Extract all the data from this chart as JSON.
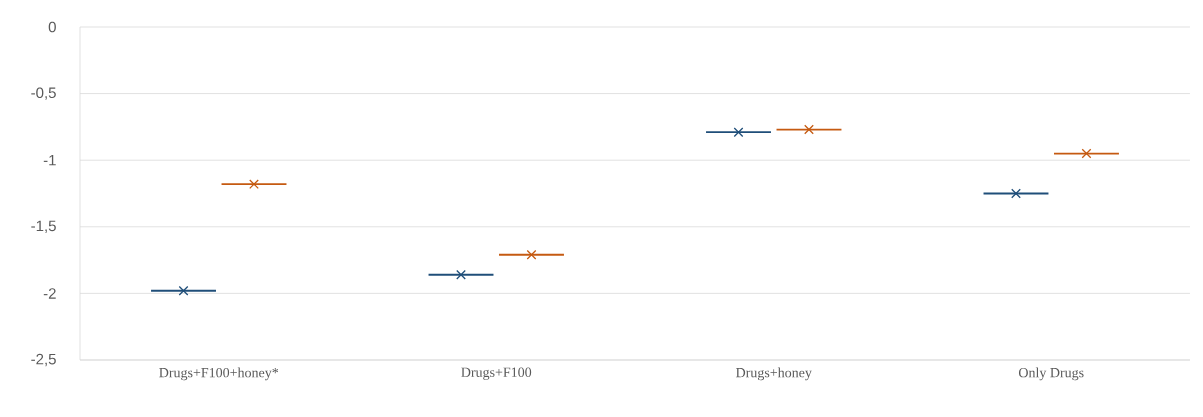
{
  "chart_data": {
    "type": "box",
    "categories": [
      "Drugs+F100+honey*",
      "Drugs+F100",
      "Drugs+honey",
      "Only Drugs"
    ],
    "series": [
      {
        "color": "#1f4e79",
        "boxes": [
          {
            "low": -1.98,
            "q1": -1.98,
            "median": -1.98,
            "q3": -1.98,
            "high": -1.98,
            "mean": -1.98
          },
          {
            "low": -1.86,
            "q1": -1.86,
            "median": -1.86,
            "q3": -1.86,
            "high": -1.86,
            "mean": -1.86
          },
          {
            "low": -0.79,
            "q1": -0.79,
            "median": -0.79,
            "q3": -0.79,
            "high": -0.79,
            "mean": -0.79
          },
          {
            "low": -1.25,
            "q1": -1.25,
            "median": -1.25,
            "q3": -1.25,
            "high": -1.25,
            "mean": -1.25
          }
        ]
      },
      {
        "color": "#c55a11",
        "boxes": [
          {
            "low": -1.18,
            "q1": -1.18,
            "median": -1.18,
            "q3": -1.18,
            "high": -1.18,
            "mean": -1.18
          },
          {
            "low": -1.71,
            "q1": -1.71,
            "median": -1.71,
            "q3": -1.71,
            "high": -1.71,
            "mean": -1.71
          },
          {
            "low": -0.77,
            "q1": -0.77,
            "median": -0.77,
            "q3": -0.77,
            "high": -0.77,
            "mean": -0.77
          },
          {
            "low": -0.95,
            "q1": -0.95,
            "median": -0.95,
            "q3": -0.95,
            "high": -0.95,
            "mean": -0.95
          }
        ]
      }
    ],
    "ylim": [
      -2.5,
      0
    ],
    "yticks": [
      0,
      {
        "value": -0.5,
        "label": "-0,5"
      },
      {
        "value": -1,
        "label": "-1"
      },
      {
        "value": -1.5,
        "label": "-1,5"
      },
      {
        "value": -2,
        "label": "-2"
      },
      {
        "value": -2.5,
        "label": "-2,5"
      }
    ],
    "grid": "y",
    "marker": "cross"
  }
}
